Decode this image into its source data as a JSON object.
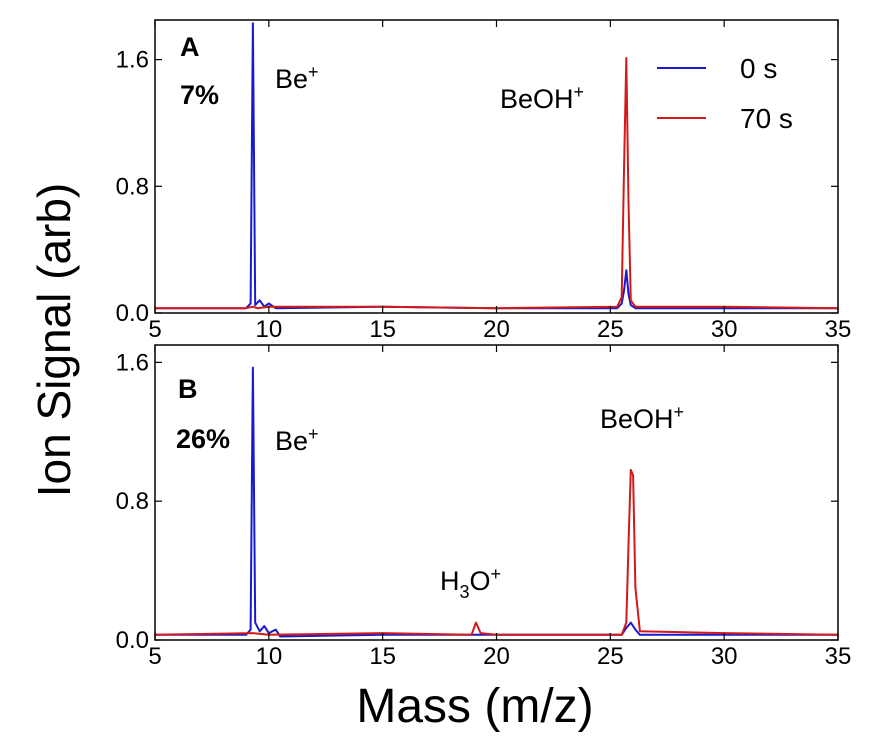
{
  "figure": {
    "xlabel": "Mass (m/z)",
    "ylabel": "Ion Signal (arb)"
  },
  "legend": {
    "placement": "top-right",
    "entries": [
      {
        "label": "0 s",
        "color": "#1a1acc"
      },
      {
        "label": "70 s",
        "color": "#d21a1a"
      }
    ]
  },
  "chart_data": [
    {
      "type": "line",
      "panel": "A",
      "percent_label": "7%",
      "xlim": [
        5,
        35
      ],
      "ylim": [
        0,
        1.85
      ],
      "xticks": [
        5,
        10,
        15,
        20,
        25,
        30,
        35
      ],
      "yticks": [
        0.0,
        0.8,
        1.6
      ],
      "grid": false,
      "annotations": [
        {
          "base": "Be",
          "sub": "",
          "sup": "+",
          "x": 9.3
        },
        {
          "base": "BeOH",
          "sub": "",
          "sup": "+",
          "x": 25.7
        }
      ],
      "series": [
        {
          "name": "0 s",
          "color": "#1a1acc",
          "x": [
            5,
            9.0,
            9.2,
            9.3,
            9.4,
            9.6,
            9.8,
            10.0,
            10.3,
            15,
            20,
            25.3,
            25.5,
            25.6,
            25.7,
            25.8,
            25.9,
            26.1,
            30,
            35
          ],
          "y": [
            0.03,
            0.03,
            0.06,
            1.83,
            0.05,
            0.08,
            0.04,
            0.06,
            0.03,
            0.04,
            0.03,
            0.03,
            0.06,
            0.14,
            0.27,
            0.12,
            0.05,
            0.03,
            0.03,
            0.03
          ]
        },
        {
          "name": "70 s",
          "color": "#d21a1a",
          "x": [
            5,
            9.0,
            9.3,
            9.5,
            10.0,
            15,
            20,
            25.3,
            25.5,
            25.6,
            25.7,
            25.8,
            25.9,
            26.1,
            26.5,
            30,
            35
          ],
          "y": [
            0.03,
            0.03,
            0.04,
            0.03,
            0.04,
            0.04,
            0.03,
            0.04,
            0.1,
            0.9,
            1.61,
            0.7,
            0.08,
            0.04,
            0.04,
            0.04,
            0.03
          ]
        }
      ]
    },
    {
      "type": "line",
      "panel": "B",
      "percent_label": "26%",
      "xlim": [
        5,
        35
      ],
      "ylim": [
        0,
        1.7
      ],
      "xticks": [
        5,
        10,
        15,
        20,
        25,
        30,
        35
      ],
      "yticks": [
        0.0,
        0.8,
        1.6
      ],
      "grid": false,
      "annotations": [
        {
          "base": "Be",
          "sub": "",
          "sup": "+",
          "x": 9.3
        },
        {
          "base": "H",
          "sub": "3",
          "sup": "+",
          "tail": "O",
          "x": 19.1
        },
        {
          "base": "BeOH",
          "sub": "",
          "sup": "+",
          "x": 25.9
        }
      ],
      "series": [
        {
          "name": "0 s",
          "color": "#1a1acc",
          "x": [
            5,
            9.0,
            9.2,
            9.3,
            9.4,
            9.6,
            9.8,
            10.0,
            10.3,
            10.5,
            15,
            19.1,
            20,
            25.5,
            25.7,
            25.9,
            26.1,
            26.3,
            30,
            35
          ],
          "y": [
            0.03,
            0.03,
            0.06,
            1.57,
            0.1,
            0.05,
            0.08,
            0.04,
            0.06,
            0.02,
            0.03,
            0.03,
            0.03,
            0.03,
            0.07,
            0.1,
            0.06,
            0.03,
            0.03,
            0.03
          ]
        },
        {
          "name": "70 s",
          "color": "#d21a1a",
          "x": [
            5,
            9.3,
            10.0,
            15,
            18.9,
            19.1,
            19.3,
            20,
            25.5,
            25.7,
            25.8,
            25.9,
            26.0,
            26.1,
            26.3,
            30,
            35
          ],
          "y": [
            0.03,
            0.04,
            0.03,
            0.04,
            0.03,
            0.1,
            0.04,
            0.03,
            0.03,
            0.1,
            0.55,
            0.98,
            0.95,
            0.3,
            0.05,
            0.04,
            0.03
          ]
        }
      ]
    }
  ]
}
